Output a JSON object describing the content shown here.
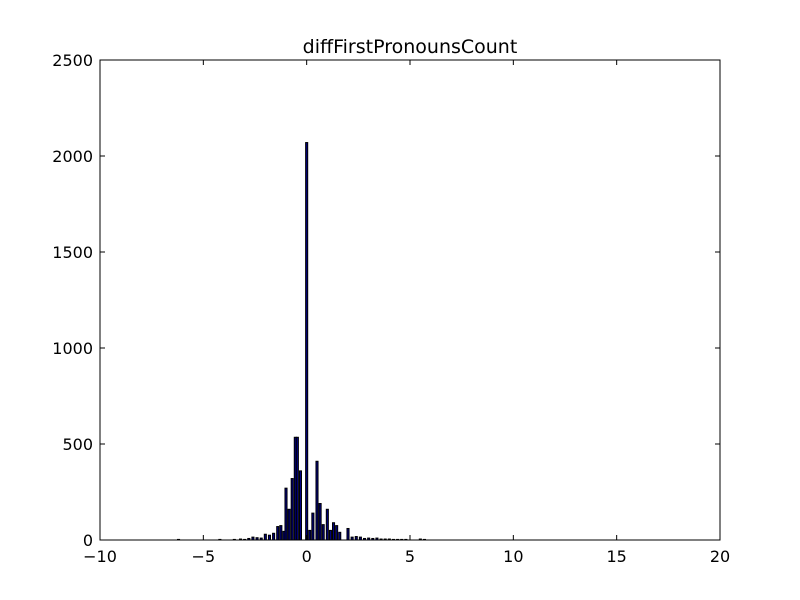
{
  "chart_data": {
    "type": "bar",
    "title": "diffFirstPronounsCount",
    "xlabel": "",
    "ylabel": "",
    "xlim": [
      -10,
      20
    ],
    "ylim": [
      0,
      2500
    ],
    "xticks": [
      -10,
      -5,
      0,
      5,
      10,
      15,
      20
    ],
    "xtick_labels": [
      "−10",
      "−5",
      "0",
      "5",
      "10",
      "15",
      "20"
    ],
    "yticks": [
      0,
      500,
      1000,
      1500,
      2000,
      2500
    ],
    "ytick_labels": [
      "0",
      "500",
      "1000",
      "1500",
      "2000",
      "2500"
    ],
    "grid": false,
    "bar_color": "#000080",
    "bar_edge_color": "#000000",
    "bin_width": 0.1,
    "bins": [
      {
        "x": -6.2,
        "y": 3
      },
      {
        "x": -4.2,
        "y": 3
      },
      {
        "x": -3.5,
        "y": 3
      },
      {
        "x": -3.2,
        "y": 5
      },
      {
        "x": -3.0,
        "y": 3
      },
      {
        "x": -2.8,
        "y": 8
      },
      {
        "x": -2.6,
        "y": 15
      },
      {
        "x": -2.4,
        "y": 12
      },
      {
        "x": -2.2,
        "y": 10
      },
      {
        "x": -2.0,
        "y": 30
      },
      {
        "x": -1.8,
        "y": 25
      },
      {
        "x": -1.6,
        "y": 35
      },
      {
        "x": -1.4,
        "y": 70
      },
      {
        "x": -1.25,
        "y": 75
      },
      {
        "x": -1.1,
        "y": 45
      },
      {
        "x": -1.0,
        "y": 270
      },
      {
        "x": -0.85,
        "y": 160
      },
      {
        "x": -0.7,
        "y": 320
      },
      {
        "x": -0.55,
        "y": 535
      },
      {
        "x": -0.45,
        "y": 535
      },
      {
        "x": -0.3,
        "y": 360
      },
      {
        "x": 0.0,
        "y": 2070
      },
      {
        "x": 0.15,
        "y": 50
      },
      {
        "x": 0.3,
        "y": 140
      },
      {
        "x": 0.5,
        "y": 410
      },
      {
        "x": 0.65,
        "y": 190
      },
      {
        "x": 0.8,
        "y": 80
      },
      {
        "x": 1.0,
        "y": 160
      },
      {
        "x": 1.15,
        "y": 50
      },
      {
        "x": 1.3,
        "y": 90
      },
      {
        "x": 1.45,
        "y": 75
      },
      {
        "x": 1.6,
        "y": 40
      },
      {
        "x": 2.0,
        "y": 60
      },
      {
        "x": 2.2,
        "y": 15
      },
      {
        "x": 2.4,
        "y": 18
      },
      {
        "x": 2.6,
        "y": 15
      },
      {
        "x": 2.8,
        "y": 8
      },
      {
        "x": 3.0,
        "y": 10
      },
      {
        "x": 3.2,
        "y": 8
      },
      {
        "x": 3.4,
        "y": 10
      },
      {
        "x": 3.6,
        "y": 5
      },
      {
        "x": 3.8,
        "y": 5
      },
      {
        "x": 4.0,
        "y": 5
      },
      {
        "x": 4.2,
        "y": 3
      },
      {
        "x": 4.4,
        "y": 3
      },
      {
        "x": 4.6,
        "y": 3
      },
      {
        "x": 4.8,
        "y": 3
      },
      {
        "x": 5.5,
        "y": 5
      },
      {
        "x": 5.7,
        "y": 3
      }
    ]
  }
}
